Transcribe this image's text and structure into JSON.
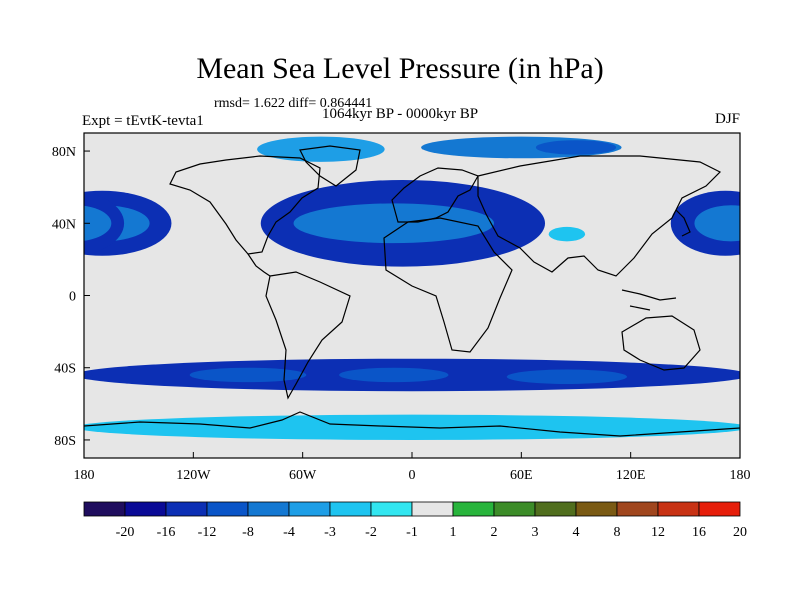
{
  "chart_data": {
    "type": "heatmap",
    "title": "Mean Sea Level Pressure (in hPa)",
    "stats_label": "rmsd= 1.622 diff= 0.864441",
    "period_label": "1064kyr BP - 0000kyr BP",
    "experiment_label": "Expt = tEvtK-tevta1",
    "season_label": "DJF",
    "x_range": [
      -180,
      180
    ],
    "y_range": [
      -90,
      90
    ],
    "x_ticks": [
      {
        "value": -180,
        "label": "180"
      },
      {
        "value": -120,
        "label": "120W"
      },
      {
        "value": -60,
        "label": "60W"
      },
      {
        "value": 0,
        "label": "0"
      },
      {
        "value": 60,
        "label": "60E"
      },
      {
        "value": 120,
        "label": "120E"
      },
      {
        "value": 180,
        "label": "180"
      }
    ],
    "y_ticks": [
      {
        "value": 80,
        "label": "80N"
      },
      {
        "value": 40,
        "label": "40N"
      },
      {
        "value": 0,
        "label": "0"
      },
      {
        "value": -40,
        "label": "40S"
      },
      {
        "value": -80,
        "label": "80S"
      }
    ],
    "colorbar": {
      "labels": [
        "-20",
        "-16",
        "-12",
        "-8",
        "-4",
        "-3",
        "-2",
        "-1",
        "1",
        "2",
        "3",
        "4",
        "8",
        "12",
        "16",
        "20"
      ],
      "colors": [
        "#1f0d5e",
        "#0a0a96",
        "#0c2fb4",
        "#0a55c8",
        "#1478d2",
        "#1e9ee6",
        "#1ec4f0",
        "#32e6f0",
        "#e6e6e6",
        "#28b43c",
        "#3c8c28",
        "#506e1e",
        "#7a5a14",
        "#a0461e",
        "#c83214",
        "#e61e0a"
      ]
    },
    "anomaly_regions": [
      {
        "name": "north-pacific-high",
        "lon": -170,
        "lat": 40,
        "rlon": 38,
        "rlat": 18,
        "bin": 2
      },
      {
        "name": "north-pacific-high-core",
        "lon": -170,
        "lat": 40,
        "rlon": 26,
        "rlat": 10,
        "bin": 4
      },
      {
        "name": "north-atlantic-europe-high",
        "lon": -5,
        "lat": 40,
        "rlon": 78,
        "rlat": 24,
        "bin": 2
      },
      {
        "name": "north-atlantic-europe-core",
        "lon": -10,
        "lat": 40,
        "rlon": 55,
        "rlat": 11,
        "bin": 4
      },
      {
        "name": "west-pacific-high",
        "lon": 172,
        "lat": 40,
        "rlon": 30,
        "rlat": 18,
        "bin": 2
      },
      {
        "name": "west-pacific-core",
        "lon": 175,
        "lat": 40,
        "rlon": 20,
        "rlat": 10,
        "bin": 4
      },
      {
        "name": "southern-high-belt",
        "lon": 0,
        "lat": -44,
        "rlon": 185,
        "rlat": 9,
        "bin": 2
      },
      {
        "name": "south-pacific-core",
        "lon": -90,
        "lat": -44,
        "rlon": 32,
        "rlat": 4,
        "bin": 3
      },
      {
        "name": "south-atlantic-core",
        "lon": -10,
        "lat": -44,
        "rlon": 30,
        "rlat": 4,
        "bin": 3
      },
      {
        "name": "indian-ocean-core",
        "lon": 85,
        "lat": -45,
        "rlon": 33,
        "rlat": 4,
        "bin": 3
      },
      {
        "name": "southern-ocean-low",
        "lon": 0,
        "lat": -73,
        "rlon": 185,
        "rlat": 7,
        "bin": 6
      },
      {
        "name": "arctic-low-west",
        "lon": -50,
        "lat": 81,
        "rlon": 35,
        "rlat": 7,
        "bin": 5
      },
      {
        "name": "arctic-low-east",
        "lon": 60,
        "lat": 82,
        "rlon": 55,
        "rlat": 6,
        "bin": 4
      },
      {
        "name": "siberia-low",
        "lon": 90,
        "lat": 82,
        "rlon": 22,
        "rlat": 4,
        "bin": 3
      },
      {
        "name": "tibet-low",
        "lon": 85,
        "lat": 34,
        "rlon": 10,
        "rlat": 4,
        "bin": 6
      }
    ]
  }
}
